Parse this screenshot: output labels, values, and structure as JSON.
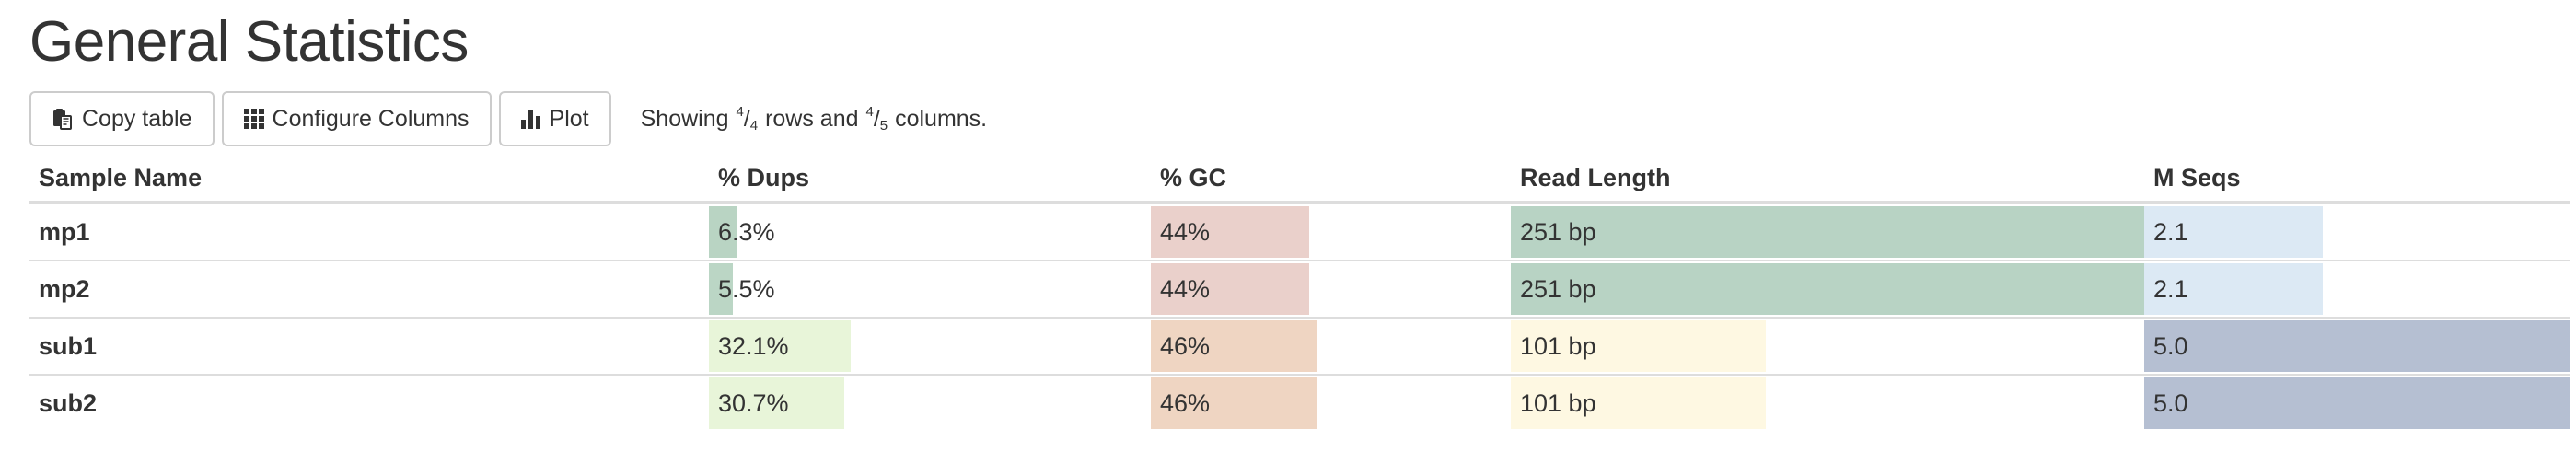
{
  "title": "General Statistics",
  "toolbar": {
    "copy_label": "Copy table",
    "configure_label": "Configure Columns",
    "plot_label": "Plot",
    "status_prefix": "Showing",
    "rows_shown": "4",
    "rows_total": "4",
    "rows_word": "rows and",
    "cols_shown": "4",
    "cols_total": "5",
    "cols_word": "columns."
  },
  "table": {
    "headers": [
      "Sample Name",
      "% Dups",
      "% GC",
      "Read Length",
      "M Seqs"
    ],
    "rows": [
      {
        "name": "mp1",
        "dups": {
          "text": "6.3%",
          "fill": 0.063,
          "color": "#b9d4c3"
        },
        "gc": {
          "text": "44%",
          "fill": 0.44,
          "color": "#ead0cb"
        },
        "len": {
          "text": "251 bp",
          "fill": 1.0,
          "color": "#b8d3c4"
        },
        "seqs": {
          "text": "2.1",
          "fill": 0.42,
          "color": "#dce9f4"
        }
      },
      {
        "name": "mp2",
        "dups": {
          "text": "5.5%",
          "fill": 0.055,
          "color": "#bbd6c5"
        },
        "gc": {
          "text": "44%",
          "fill": 0.44,
          "color": "#ead0cb"
        },
        "len": {
          "text": "251 bp",
          "fill": 1.0,
          "color": "#b8d3c4"
        },
        "seqs": {
          "text": "2.1",
          "fill": 0.42,
          "color": "#dce9f4"
        }
      },
      {
        "name": "sub1",
        "dups": {
          "text": "32.1%",
          "fill": 0.321,
          "color": "#e8f5d9"
        },
        "gc": {
          "text": "46%",
          "fill": 0.46,
          "color": "#efd5c2"
        },
        "len": {
          "text": "101 bp",
          "fill": 0.402,
          "color": "#fef8e2"
        },
        "seqs": {
          "text": "5.0",
          "fill": 1.0,
          "color": "#b5bfd2"
        }
      },
      {
        "name": "sub2",
        "dups": {
          "text": "30.7%",
          "fill": 0.307,
          "color": "#e8f5d9"
        },
        "gc": {
          "text": "46%",
          "fill": 0.46,
          "color": "#efd5c2"
        },
        "len": {
          "text": "101 bp",
          "fill": 0.402,
          "color": "#fef8e2"
        },
        "seqs": {
          "text": "5.0",
          "fill": 1.0,
          "color": "#b5bfd2"
        }
      }
    ]
  },
  "icons": {
    "copy": "clipboard-icon",
    "configure": "grid-icon",
    "plot": "bar-chart-icon"
  }
}
